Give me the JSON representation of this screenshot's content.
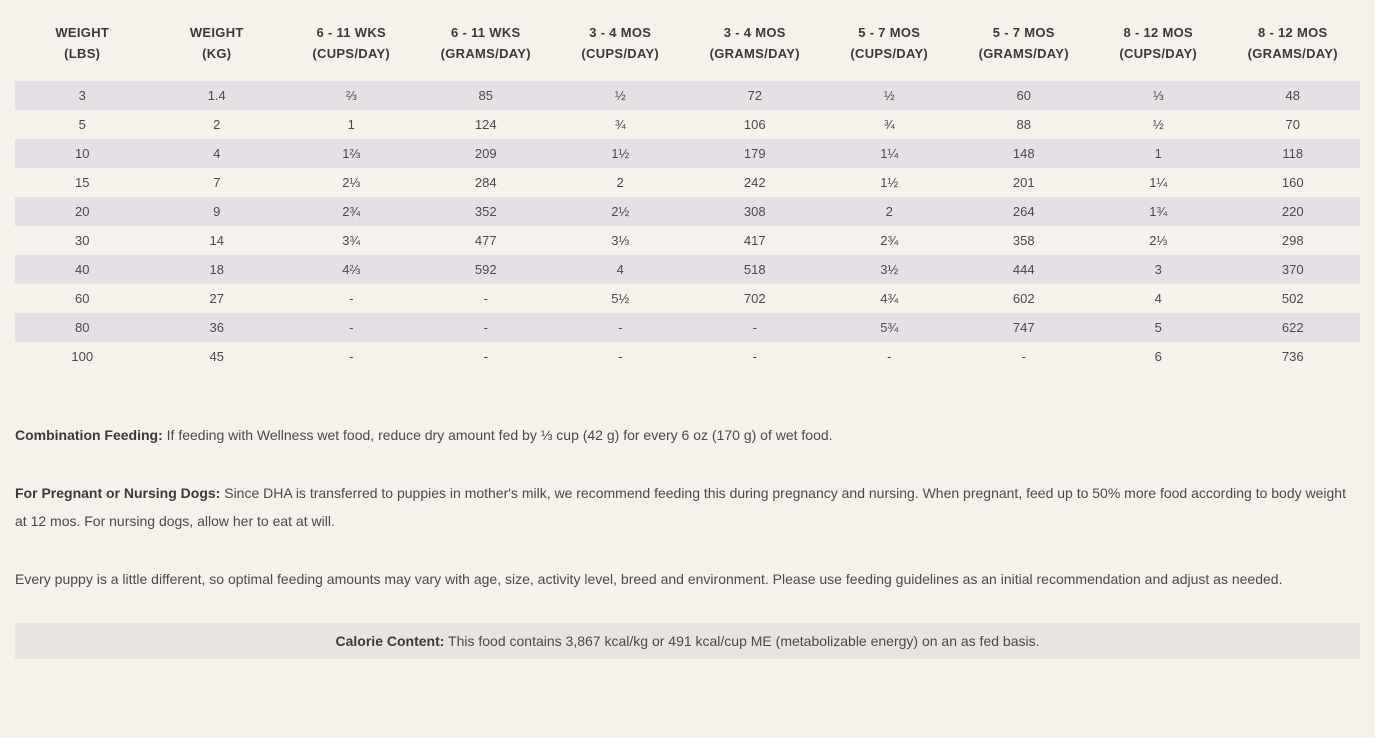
{
  "table": {
    "columns": [
      {
        "line1": "WEIGHT",
        "line2": "(LBS)"
      },
      {
        "line1": "WEIGHT",
        "line2": "(KG)"
      },
      {
        "line1": "6 - 11 WKS",
        "line2": "(CUPS/DAY)"
      },
      {
        "line1": "6 - 11 WKS",
        "line2": "(GRAMS/DAY)"
      },
      {
        "line1": "3 - 4 MOS",
        "line2": "(CUPS/DAY)"
      },
      {
        "line1": "3 - 4 MOS",
        "line2": "(GRAMS/DAY)"
      },
      {
        "line1": "5 - 7 MOS",
        "line2": "(CUPS/DAY)"
      },
      {
        "line1": "5 - 7 MOS",
        "line2": "(GRAMS/DAY)"
      },
      {
        "line1": "8 - 12 MOS",
        "line2": "(CUPS/DAY)"
      },
      {
        "line1": "8 - 12 MOS",
        "line2": "(GRAMS/DAY)"
      }
    ],
    "rows": [
      [
        "3",
        "1.4",
        "⅔",
        "85",
        "½",
        "72",
        "½",
        "60",
        "⅓",
        "48"
      ],
      [
        "5",
        "2",
        "1",
        "124",
        "¾",
        "106",
        "¾",
        "88",
        "½",
        "70"
      ],
      [
        "10",
        "4",
        "1⅔",
        "209",
        "1½",
        "179",
        "1¼",
        "148",
        "1",
        "118"
      ],
      [
        "15",
        "7",
        "2⅓",
        "284",
        "2",
        "242",
        "1½",
        "201",
        "1¼",
        "160"
      ],
      [
        "20",
        "9",
        "2¾",
        "352",
        "2½",
        "308",
        "2",
        "264",
        "1¾",
        "220"
      ],
      [
        "30",
        "14",
        "3¾",
        "477",
        "3⅓",
        "417",
        "2¾",
        "358",
        "2⅓",
        "298"
      ],
      [
        "40",
        "18",
        "4⅔",
        "592",
        "4",
        "518",
        "3½",
        "444",
        "3",
        "370"
      ],
      [
        "60",
        "27",
        "-",
        "-",
        "5½",
        "702",
        "4¾",
        "602",
        "4",
        "502"
      ],
      [
        "80",
        "36",
        "-",
        "-",
        "-",
        "-",
        "5¾",
        "747",
        "5",
        "622"
      ],
      [
        "100",
        "45",
        "-",
        "-",
        "-",
        "-",
        "-",
        "-",
        "6",
        "736"
      ]
    ],
    "header_bg": "transparent",
    "row_odd_bg": "#e7dfe6",
    "row_even_bg": "transparent",
    "font_size_header": 13,
    "font_size_cell": 13
  },
  "notes": {
    "combo_label": "Combination Feeding:",
    "combo_text": " If feeding with Wellness wet food, reduce dry amount fed by ⅓ cup (42 g) for every 6 oz (170 g) of wet food.",
    "pregnant_label": "For Pregnant or Nursing Dogs:",
    "pregnant_text": " Since DHA is transferred to puppies in mother's milk, we recommend feeding this during pregnancy and nursing. When pregnant, feed up to 50% more food according to body weight at 12 mos. For nursing dogs, allow her to eat at will.",
    "vary_text": "Every puppy is a little different, so optimal feeding amounts may vary with age, size, activity level, breed and environment. Please use feeding guidelines as an initial recommendation and adjust as needed."
  },
  "calorie": {
    "label": "Calorie Content:",
    "text": " This food contains 3,867 kcal/kg or 491 kcal/cup ME (metabolizable energy) on an as fed basis."
  },
  "colors": {
    "page_bg": "#f5f2ec",
    "text": "#4a4a4a",
    "heading_text": "#3a3a3a",
    "calorie_bg": "#e9e4e0"
  }
}
